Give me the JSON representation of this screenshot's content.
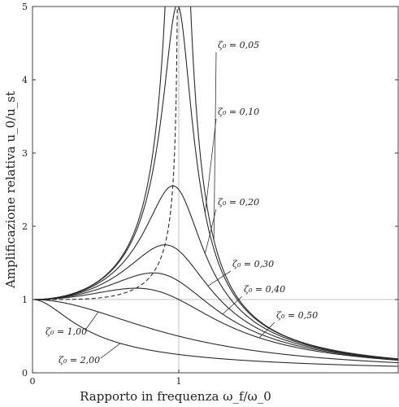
{
  "chart_data": {
    "type": "line",
    "title": "",
    "xlabel": "Rapporto in frequenza ω_f/ω_0",
    "ylabel": "Amplificazione relativa u_0/u_st",
    "xlim": [
      0,
      2.5
    ],
    "ylim": [
      0,
      5
    ],
    "x_ticks": [
      {
        "value": 0,
        "label": "0"
      },
      {
        "value": 1,
        "label": "1"
      }
    ],
    "y_ticks": [
      {
        "value": 0,
        "label": "0"
      },
      {
        "value": 1,
        "label": "1"
      },
      {
        "value": 2,
        "label": "2"
      },
      {
        "value": 3,
        "label": "3"
      },
      {
        "value": 4,
        "label": "4"
      },
      {
        "value": 5,
        "label": "5"
      }
    ],
    "grid": "reference lines at x = 1 and y = 1",
    "formula": "u0/ust = 1 / sqrt((1 - r^2)^2 + (2 ζ0 r)^2), r = ωf/ω0",
    "series": [
      {
        "name": "ζ₀ = 0,05",
        "zeta": 0.05,
        "style": "solid",
        "annotation_pos": "right-high"
      },
      {
        "name": "ζ₀ = 0,10",
        "zeta": 0.1,
        "style": "solid",
        "annotation_pos": "right"
      },
      {
        "name": "ζ₀ = 0,20",
        "zeta": 0.2,
        "style": "solid",
        "annotation_pos": "right"
      },
      {
        "name": "ζ₀ = 0,30",
        "zeta": 0.3,
        "style": "solid",
        "annotation_pos": "right"
      },
      {
        "name": "ζ₀ = 0,40",
        "zeta": 0.4,
        "style": "solid",
        "annotation_pos": "right"
      },
      {
        "name": "ζ₀ = 0,50",
        "zeta": 0.5,
        "style": "solid",
        "annotation_pos": "right-low"
      },
      {
        "name": "ζ₀ = 1,00",
        "zeta": 1.0,
        "style": "solid",
        "annotation_pos": "left"
      },
      {
        "name": "ζ₀ = 2,00",
        "zeta": 2.0,
        "style": "solid",
        "annotation_pos": "left"
      }
    ],
    "peak_locus": {
      "name": "peak locus",
      "style": "dashed",
      "formula": "r = sqrt(1 - 2ζ0²), peak = 1/(2ζ0 sqrt(1-ζ0²))"
    },
    "annotations": [
      {
        "text": "ζ₀ = 0,05",
        "series": "0.05"
      },
      {
        "text": "ζ₀ = 0,10",
        "series": "0.10"
      },
      {
        "text": "ζ₀ = 0,20",
        "series": "0.20"
      },
      {
        "text": "ζ₀ = 0,30",
        "series": "0.30"
      },
      {
        "text": "ζ₀ = 0,40",
        "series": "0.40"
      },
      {
        "text": "ζ₀ = 0,50",
        "series": "0.50"
      },
      {
        "text": "ζ₀ = 1,00",
        "series": "1.00"
      },
      {
        "text": "ζ₀ = 2,00",
        "series": "2.00"
      }
    ]
  }
}
